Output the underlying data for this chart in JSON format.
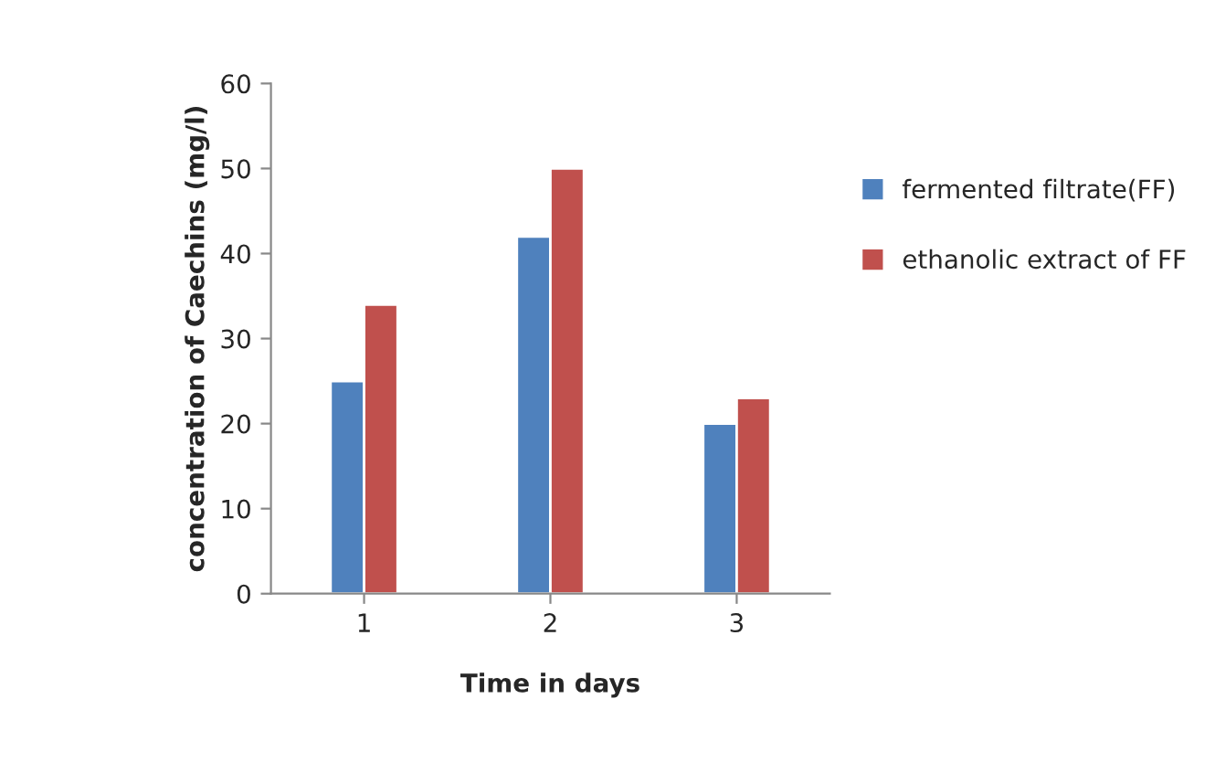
{
  "chart_data": {
    "type": "bar",
    "xlabel": "Time in days",
    "ylabel": "concentration of Caechins (mg/l)",
    "categories": [
      "1",
      "2",
      "3"
    ],
    "series": [
      {
        "name": "fermented filtrate(FF)",
        "color": "#4f81bd",
        "values": [
          25,
          42,
          20
        ]
      },
      {
        "name": "ethanolic extract of FF",
        "color": "#c0504d",
        "values": [
          34,
          50,
          23
        ]
      }
    ],
    "ylim": [
      0,
      60
    ],
    "yticks": [
      0,
      10,
      20,
      30,
      40,
      50,
      60
    ],
    "grid": false,
    "legend": "right"
  }
}
